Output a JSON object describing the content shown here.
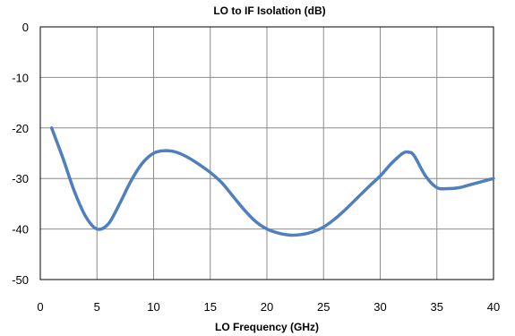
{
  "chart_data": {
    "type": "line",
    "title": "LO to IF Isolation (dB)",
    "xlabel": "LO Frequency (GHz)",
    "ylabel": "",
    "xlim": [
      0,
      40
    ],
    "ylim": [
      -50,
      0
    ],
    "x_ticks": [
      0,
      5,
      10,
      15,
      20,
      25,
      30,
      35,
      40
    ],
    "y_ticks": [
      0,
      -10,
      -20,
      -30,
      -40,
      -50
    ],
    "grid": true,
    "legend": "none",
    "series": [
      {
        "color": "#4f7fbd",
        "points": [
          [
            1,
            -20
          ],
          [
            2,
            -26
          ],
          [
            3,
            -32.5
          ],
          [
            4,
            -37.5
          ],
          [
            5,
            -40
          ],
          [
            6,
            -39
          ],
          [
            7,
            -35
          ],
          [
            8,
            -30.5
          ],
          [
            9,
            -27
          ],
          [
            10,
            -25
          ],
          [
            11,
            -24.5
          ],
          [
            12,
            -24.8
          ],
          [
            13,
            -25.8
          ],
          [
            14,
            -27.2
          ],
          [
            15,
            -28.8
          ],
          [
            16,
            -30.8
          ],
          [
            17,
            -33.5
          ],
          [
            18,
            -36.2
          ],
          [
            19,
            -38.5
          ],
          [
            20,
            -40
          ],
          [
            21,
            -40.8
          ],
          [
            22,
            -41.2
          ],
          [
            23,
            -41.1
          ],
          [
            24,
            -40.6
          ],
          [
            25,
            -39.6
          ],
          [
            26,
            -38
          ],
          [
            27,
            -36
          ],
          [
            28,
            -33.8
          ],
          [
            29,
            -31.6
          ],
          [
            30,
            -29.5
          ],
          [
            31,
            -27
          ],
          [
            32,
            -25
          ],
          [
            32.5,
            -24.8
          ],
          [
            33,
            -25.5
          ],
          [
            34,
            -29.5
          ],
          [
            35,
            -31.8
          ],
          [
            36,
            -32
          ],
          [
            37,
            -31.8
          ],
          [
            38,
            -31.2
          ],
          [
            39,
            -30.6
          ],
          [
            40,
            -30
          ]
        ]
      }
    ]
  }
}
